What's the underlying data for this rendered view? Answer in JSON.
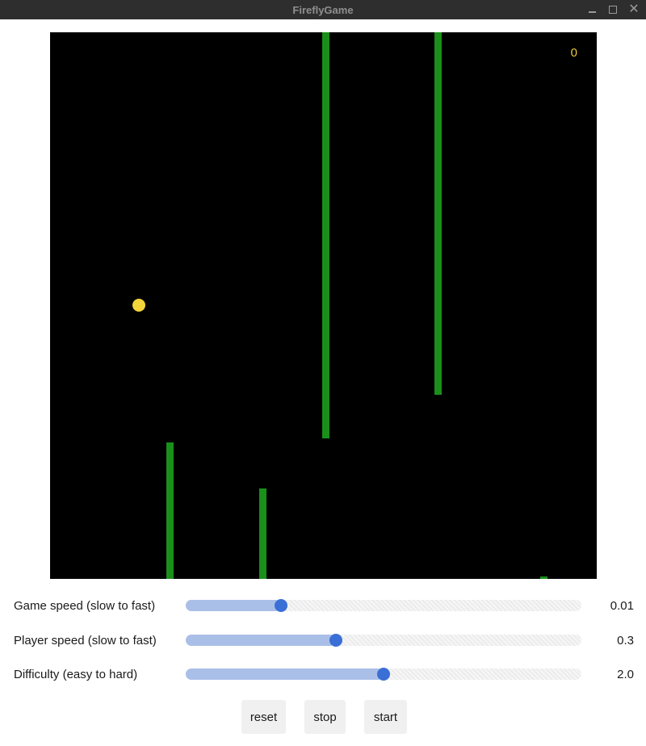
{
  "window": {
    "title": "FireflyGame"
  },
  "game": {
    "score": "0",
    "player_color": "#f2d33a",
    "obstacle_color": "#1a8f1a",
    "background_color": "#000000"
  },
  "controls": [
    {
      "label": "Game speed (slow to fast)",
      "value": "0.01",
      "fraction": 0.24
    },
    {
      "label": "Player speed (slow to fast)",
      "value": "0.3",
      "fraction": 0.38
    },
    {
      "label": "Difficulty (easy to hard)",
      "value": "2.0",
      "fraction": 0.5
    }
  ],
  "buttons": {
    "reset": "reset",
    "stop": "stop",
    "start": "start"
  }
}
